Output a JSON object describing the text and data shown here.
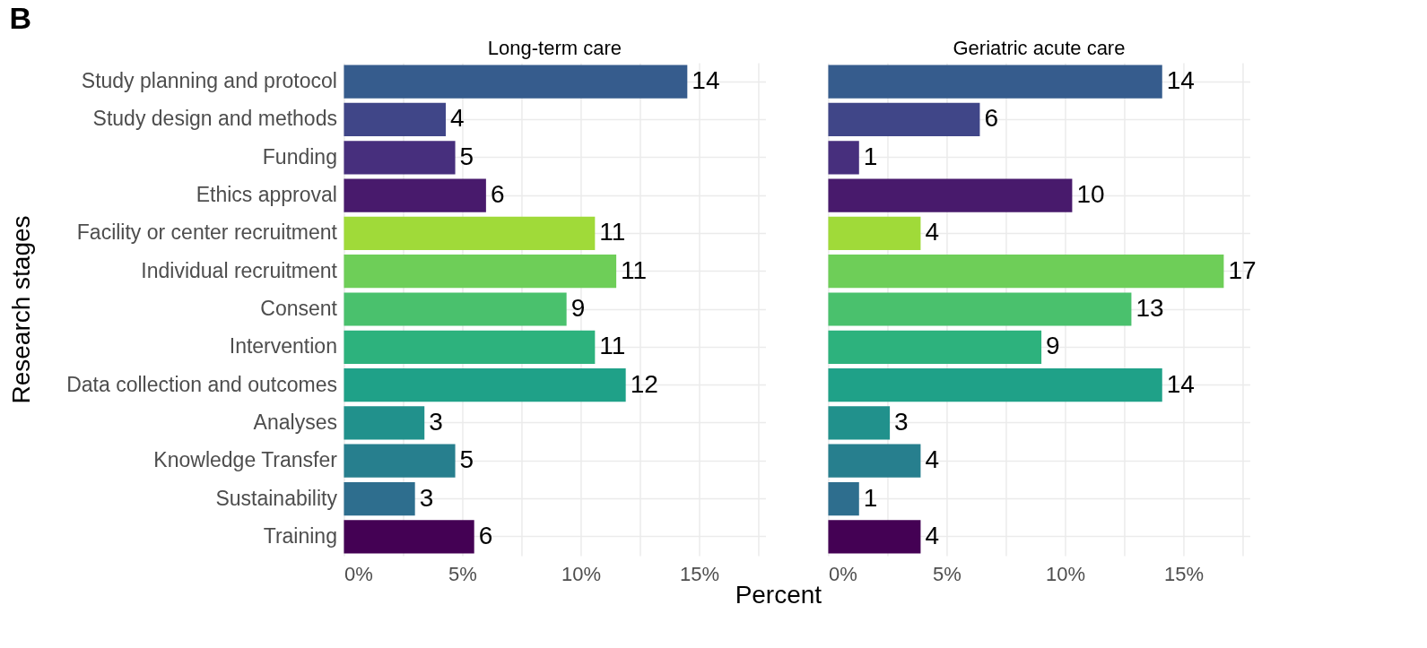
{
  "chart_data": [
    {
      "type": "bar",
      "orientation": "horizontal",
      "title": "Long-term care",
      "xlabel": "Percent",
      "ylabel": "Research stages",
      "annotations": [
        "B"
      ],
      "categories": [
        "Study planning and protocol",
        "Study design and methods",
        "Funding",
        "Ethics approval",
        "Facility or center recruitment",
        "Individual recruitment",
        "Consent",
        "Intervention",
        "Data collection and outcomes",
        "Analyses",
        "Knowledge Transfer",
        "Sustainability",
        "Training"
      ],
      "values": [
        14.5,
        4.3,
        4.7,
        6.0,
        10.6,
        11.5,
        9.4,
        10.6,
        11.9,
        3.4,
        4.7,
        3.0,
        5.5
      ],
      "value_labels": [
        "14",
        "4",
        "5",
        "6",
        "11",
        "11",
        "9",
        "11",
        "12",
        "3",
        "5",
        "3",
        "6"
      ],
      "colors": [
        "#365c8d",
        "#404688",
        "#472f7d",
        "#481a6c",
        "#a0da39",
        "#6ece58",
        "#4ac16d",
        "#2db27d",
        "#1fa188",
        "#21918c",
        "#277f8e",
        "#2e6e8e",
        "#440154"
      ],
      "xlim": [
        0,
        17.8
      ],
      "xticks": [
        {
          "value": 0,
          "label": "0%"
        },
        {
          "value": 2.5,
          "label": null
        },
        {
          "value": 5,
          "label": "5%"
        },
        {
          "value": 7.5,
          "label": null
        },
        {
          "value": 10,
          "label": "10%"
        },
        {
          "value": 12.5,
          "label": null
        },
        {
          "value": 15,
          "label": "15%"
        },
        {
          "value": 17.5,
          "label": null
        }
      ],
      "grid": true,
      "legend": false
    },
    {
      "type": "bar",
      "orientation": "horizontal",
      "title": "Geriatric acute care",
      "tick_labels": "x",
      "categories": [
        "Study planning and protocol",
        "Study design and methods",
        "Funding",
        "Ethics approval",
        "Facility or center recruitment",
        "Individual recruitment",
        "Consent",
        "Intervention",
        "Data collection and outcomes",
        "Analyses",
        "Knowledge Transfer",
        "Sustainability",
        "Training"
      ],
      "values": [
        14.1,
        6.4,
        1.3,
        10.3,
        3.9,
        16.7,
        12.8,
        9.0,
        14.1,
        2.6,
        3.9,
        1.3,
        3.9
      ],
      "value_labels": [
        "14",
        "6",
        "1",
        "10",
        "4",
        "17",
        "13",
        "9",
        "14",
        "3",
        "4",
        "1",
        "4"
      ],
      "colors": [
        "#365c8d",
        "#404688",
        "#472f7d",
        "#481a6c",
        "#a0da39",
        "#6ece58",
        "#4ac16d",
        "#2db27d",
        "#1fa188",
        "#21918c",
        "#277f8e",
        "#2e6e8e",
        "#440154"
      ],
      "xlim": [
        0,
        17.8
      ],
      "xticks": [
        {
          "value": 0,
          "label": "0%"
        },
        {
          "value": 2.5,
          "label": null
        },
        {
          "value": 5,
          "label": "5%"
        },
        {
          "value": 7.5,
          "label": null
        },
        {
          "value": 10,
          "label": "10%"
        },
        {
          "value": 12.5,
          "label": null
        },
        {
          "value": 15,
          "label": "15%"
        },
        {
          "value": 17.5,
          "label": null
        }
      ],
      "grid": true,
      "legend": false
    }
  ]
}
